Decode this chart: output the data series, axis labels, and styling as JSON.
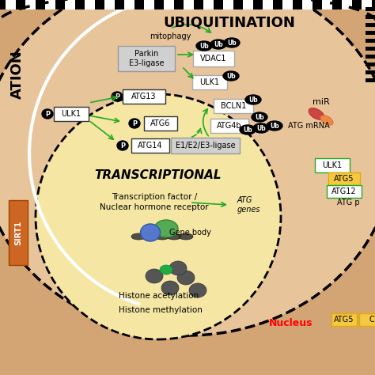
{
  "bg_outer": "#d4a574",
  "bg_cell": "#e8c49a",
  "bg_nucleus": "#f5e6a3",
  "title_ubiq": "UBIQUITINATION",
  "title_trans": "TRANSCRIPTIONAL",
  "label_mitophagy": "mitophagy",
  "label_parkin": "Parkin\nE3-ligase",
  "label_vdac1": "VDAC1",
  "label_ulk1_top": "ULK1",
  "label_bcln1": "BCLN1",
  "label_atg4b": "ATG4b",
  "label_e1e2e3": "E1/E2/E3-ligase",
  "label_atg13": "ATG13",
  "label_ulk1_left": "ULK1",
  "label_atg6": "ATG6",
  "label_atg14": "ATG14",
  "label_mir": "miR",
  "label_atg_mrna": "ATG mRNA",
  "label_trans_factor": "Transcription factor /\nNuclear hormone receptor",
  "label_atg_genes": "ATG\ngenes",
  "label_gene_body": "Gene body",
  "label_histone_ac": "Histone acetylation",
  "label_histone_me": "Histone methylation",
  "label_nucleus": "Nucleus",
  "label_sirt1": "SIRT1",
  "label_ation": "ATION",
  "label_ulk1_right": "ULK1",
  "label_atg5": "ATG5",
  "label_atg12": "ATG12",
  "label_atg_p": "ATG p",
  "label_ub": "Ub",
  "label_p": "P"
}
